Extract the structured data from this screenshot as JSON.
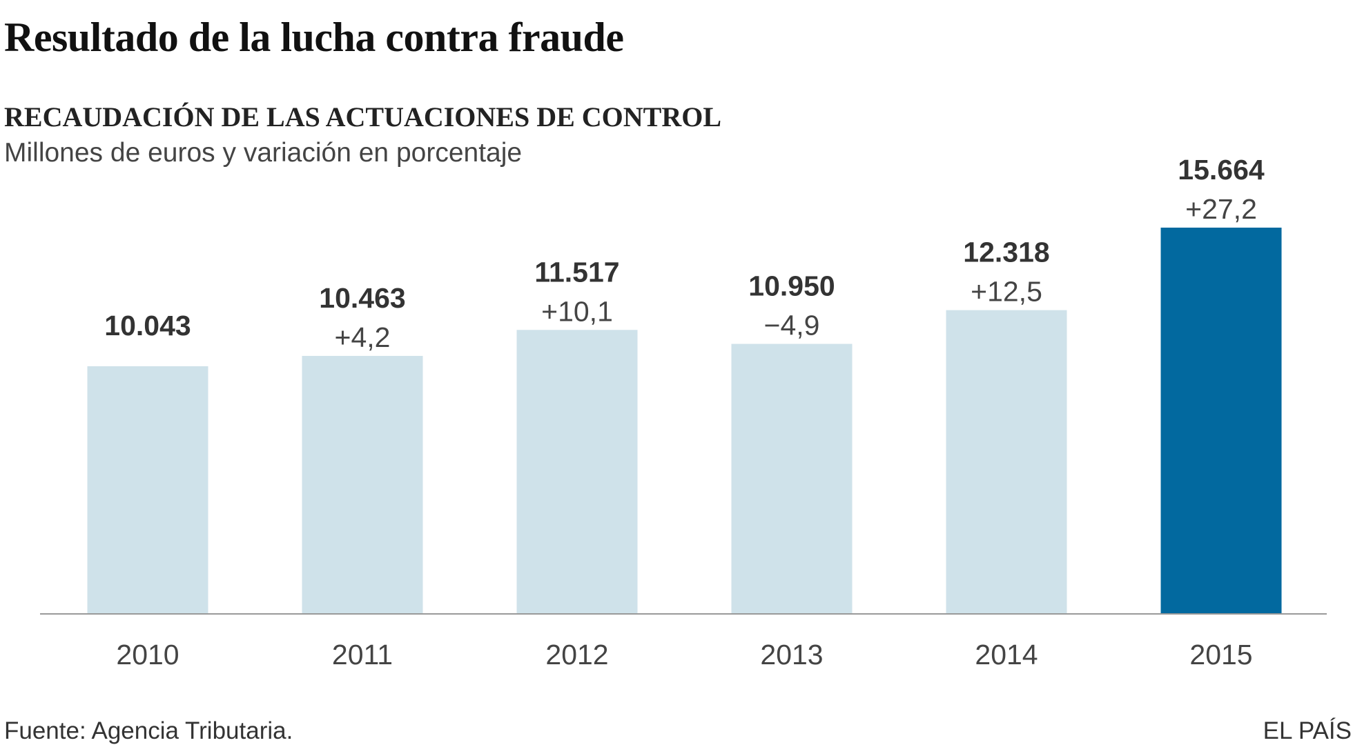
{
  "title": "Resultado de la lucha contra fraude",
  "subtitle": "RECAUDACIÓN DE LAS ACTUACIONES DE CONTROL",
  "units": "Millones de euros y variación en porcentaje",
  "source": "Fuente: Agencia Tributaria.",
  "brand": "EL PAÍS",
  "chart_data": {
    "type": "bar",
    "categories": [
      "2010",
      "2011",
      "2012",
      "2013",
      "2014",
      "2015"
    ],
    "values": [
      10043,
      10463,
      11517,
      10950,
      12318,
      15664
    ],
    "value_labels": [
      "10.043",
      "10.463",
      "11.517",
      "10.950",
      "12.318",
      "15.664"
    ],
    "pct_labels": [
      "",
      "+4,2",
      "+10,1",
      "−4,9",
      "+12,5",
      "+27,2"
    ],
    "ylim": [
      0,
      15664
    ],
    "grid": false,
    "colors": {
      "default": "#cfe2ea",
      "highlight": "#02699f"
    },
    "highlight_index": 5
  }
}
